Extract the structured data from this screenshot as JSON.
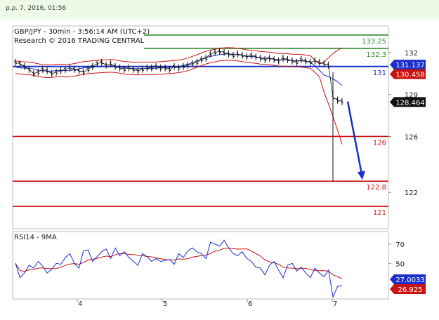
{
  "header": {
    "date_text": "ρ.ρ. 7, 2016, 01:56"
  },
  "chart_data": {
    "type": "line",
    "title": "GBP/JPY - 30min - 3:56:14 AM (UTC+2)",
    "subtitle": "Research © 2016 TRADING CENTRAL",
    "x_ticks": [
      "4",
      "5",
      "6",
      "7"
    ],
    "price_axis": {
      "ticks": [
        132,
        129,
        126,
        122
      ],
      "range": [
        119.4,
        133.9
      ]
    },
    "levels": [
      {
        "value": 133.25,
        "label": "133.25",
        "color": "#2e8b2e"
      },
      {
        "value": 132.3,
        "label": "132.3",
        "color": "#2e8b2e"
      },
      {
        "value": 131,
        "label": "131",
        "color": "#1a2fcc"
      },
      {
        "value": 126,
        "label": "126",
        "color": "#cc1111"
      },
      {
        "value": 122.8,
        "label": "122.8",
        "color": "#cc1111"
      },
      {
        "value": 121,
        "label": "121",
        "color": "#cc1111"
      }
    ],
    "price_tags": [
      {
        "value": 131.137,
        "label": "131.137",
        "bg": "#1a2fcc",
        "fg": "#ffffff"
      },
      {
        "value": 130.458,
        "label": "130.458",
        "bg": "#cc1111",
        "fg": "#ffffff"
      },
      {
        "value": 128.464,
        "label": "128.464",
        "bg": "#111111",
        "fg": "#ffffff"
      }
    ],
    "forecast_arrow": {
      "from": 128.5,
      "to": 122.9
    },
    "price_series": [
      131.3,
      131.2,
      131.0,
      130.8,
      130.5,
      130.6,
      130.8,
      130.7,
      130.5,
      130.6,
      130.7,
      130.8,
      130.9,
      130.8,
      130.7,
      130.6,
      130.8,
      131.0,
      131.2,
      131.3,
      131.1,
      131.2,
      131.0,
      130.9,
      130.8,
      130.9,
      130.8,
      130.7,
      130.8,
      130.9,
      130.9,
      131.0,
      130.9,
      130.9,
      130.8,
      131.0,
      130.9,
      131.0,
      131.1,
      131.2,
      131.3,
      131.5,
      131.6,
      131.9,
      132.0,
      132.1,
      132.0,
      131.9,
      131.8,
      131.9,
      131.8,
      131.7,
      131.8,
      131.7,
      131.6,
      131.5,
      131.6,
      131.5,
      131.4,
      131.6,
      131.5,
      131.4,
      131.3,
      131.5,
      131.4,
      131.3,
      131.4,
      131.3,
      131.2,
      131.1,
      128.8,
      128.6,
      128.5
    ],
    "rsi": {
      "label": "RSI14 - 9MA",
      "ticks": [
        70,
        50
      ],
      "range": [
        13,
        83
      ],
      "tags": [
        {
          "value": 27.0033,
          "label": "27.0033",
          "bg": "#1a2fcc",
          "fg": "#ffffff"
        },
        {
          "value": 26.925,
          "label": "26.925",
          "bg": "#cc1111",
          "fg": "#ffffff"
        }
      ],
      "series": [
        50,
        35,
        40,
        48,
        45,
        52,
        47,
        40,
        44,
        50,
        49,
        56,
        60,
        50,
        45,
        63,
        64,
        52,
        57,
        62,
        65,
        55,
        66,
        58,
        62,
        56,
        52,
        48,
        60,
        57,
        52,
        55,
        52,
        53,
        54,
        49,
        60,
        56,
        63,
        66,
        62,
        60,
        55,
        72,
        70,
        68,
        74,
        66,
        60,
        58,
        62,
        55,
        52,
        46,
        45,
        38,
        48,
        52,
        43,
        35,
        48,
        50,
        42,
        46,
        40,
        35,
        45,
        40,
        36,
        43,
        15,
        26,
        27
      ]
    }
  }
}
